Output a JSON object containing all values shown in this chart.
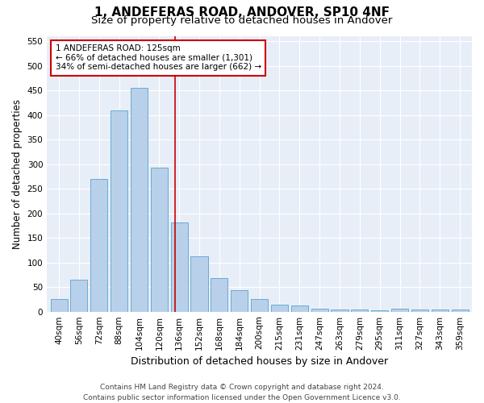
{
  "title_line1": "1, ANDEFERAS ROAD, ANDOVER, SP10 4NF",
  "title_line2": "Size of property relative to detached houses in Andover",
  "xlabel": "Distribution of detached houses by size in Andover",
  "ylabel": "Number of detached properties",
  "categories": [
    "40sqm",
    "56sqm",
    "72sqm",
    "88sqm",
    "104sqm",
    "120sqm",
    "136sqm",
    "152sqm",
    "168sqm",
    "184sqm",
    "200sqm",
    "215sqm",
    "231sqm",
    "247sqm",
    "263sqm",
    "279sqm",
    "295sqm",
    "311sqm",
    "327sqm",
    "343sqm",
    "359sqm"
  ],
  "values": [
    25,
    65,
    270,
    410,
    455,
    293,
    181,
    113,
    68,
    44,
    26,
    15,
    12,
    6,
    5,
    5,
    3,
    6,
    5,
    5,
    5
  ],
  "bar_color": "#b8d0ea",
  "bar_edge_color": "#6aaad4",
  "vline_color": "#cc0000",
  "annotation_text": "1 ANDEFERAS ROAD: 125sqm\n← 66% of detached houses are smaller (1,301)\n34% of semi-detached houses are larger (662) →",
  "annotation_box_color": "#ffffff",
  "annotation_box_edge_color": "#cc0000",
  "ylim": [
    0,
    560
  ],
  "yticks": [
    0,
    50,
    100,
    150,
    200,
    250,
    300,
    350,
    400,
    450,
    500,
    550
  ],
  "background_color": "#e8eef8",
  "footer_line1": "Contains HM Land Registry data © Crown copyright and database right 2024.",
  "footer_line2": "Contains public sector information licensed under the Open Government Licence v3.0.",
  "grid_color": "#ffffff",
  "title_fontsize": 11,
  "subtitle_fontsize": 9.5,
  "ylabel_fontsize": 8.5,
  "xlabel_fontsize": 9,
  "tick_fontsize": 7.5,
  "annotation_fontsize": 7.5,
  "footer_fontsize": 6.5,
  "vline_pos": 5.81
}
